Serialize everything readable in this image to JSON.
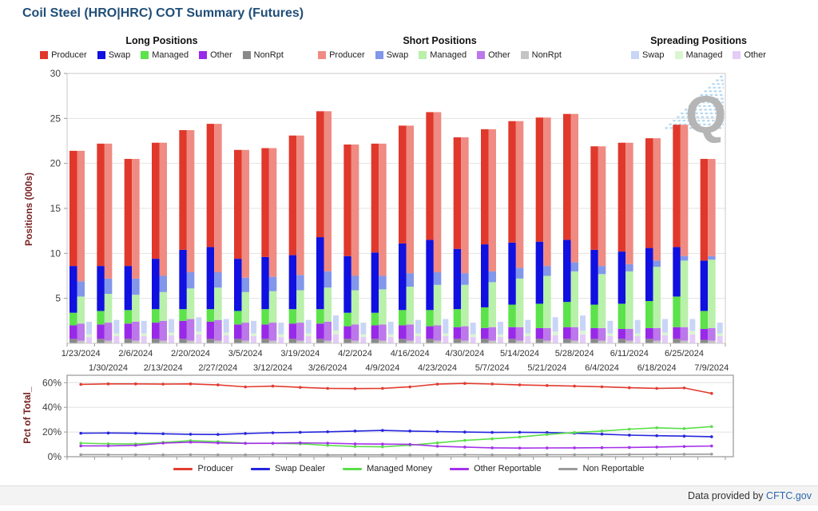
{
  "title": "Coil Steel (HRO|HRC) COT Summary (Futures)",
  "legend_groups": [
    {
      "title": "Long Positions",
      "items": [
        {
          "label": "Producer",
          "color": "#e0382c"
        },
        {
          "label": "Swap",
          "color": "#1010e0"
        },
        {
          "label": "Managed",
          "color": "#5ce24a"
        },
        {
          "label": "Other",
          "color": "#9929e8"
        },
        {
          "label": "NonRpt",
          "color": "#8a8a8a"
        }
      ]
    },
    {
      "title": "Short Positions",
      "items": [
        {
          "label": "Producer",
          "color": "#ef8b82"
        },
        {
          "label": "Swap",
          "color": "#8296ea"
        },
        {
          "label": "Managed",
          "color": "#b9f0aa"
        },
        {
          "label": "Other",
          "color": "#bc77ea"
        },
        {
          "label": "NonRpt",
          "color": "#c4c4c4"
        }
      ]
    },
    {
      "title": "Spreading Positions",
      "items": [
        {
          "label": "Swap",
          "color": "#c9d5f6"
        },
        {
          "label": "Managed",
          "color": "#d9f6d0"
        },
        {
          "label": "Other",
          "color": "#e4cbf8"
        }
      ]
    }
  ],
  "chart_data": [
    {
      "type": "bar",
      "title": "COT positions by trader category, stacked long/short/spreading bars per report date",
      "ylabel": "Positions (000s)",
      "ylim": [
        0,
        30
      ],
      "yticks": [
        5,
        10,
        15,
        20,
        25,
        30
      ],
      "grid": "horizontal",
      "categories": [
        "1/23/2024",
        "1/30/2024",
        "2/6/2024",
        "2/13/2024",
        "2/20/2024",
        "2/27/2024",
        "3/5/2024",
        "3/12/2024",
        "3/19/2024",
        "3/26/2024",
        "4/2/2024",
        "4/9/2024",
        "4/16/2024",
        "4/23/2024",
        "4/30/2024",
        "5/7/2024",
        "5/14/2024",
        "5/21/2024",
        "5/28/2024",
        "6/4/2024",
        "6/11/2024",
        "6/18/2024",
        "6/25/2024",
        "7/9/2024"
      ],
      "groups": [
        {
          "name": "long",
          "series": [
            {
              "name": "NonRpt",
              "color": "#8a8a8a",
              "values": [
                0.5,
                0.5,
                0.5,
                0.5,
                0.5,
                0.5,
                0.5,
                0.5,
                0.5,
                0.5,
                0.5,
                0.5,
                0.5,
                0.5,
                0.5,
                0.5,
                0.5,
                0.5,
                0.5,
                0.5,
                0.5,
                0.5,
                0.5,
                0.4
              ]
            },
            {
              "name": "Other",
              "color": "#9929e8",
              "values": [
                1.5,
                1.6,
                1.7,
                1.8,
                2.0,
                1.9,
                1.6,
                1.6,
                1.7,
                1.7,
                1.4,
                1.5,
                1.5,
                1.4,
                1.3,
                1.2,
                1.3,
                1.2,
                1.3,
                1.2,
                1.1,
                1.2,
                1.3,
                1.2
              ]
            },
            {
              "name": "Managed",
              "color": "#5ce24a",
              "values": [
                1.4,
                1.5,
                1.5,
                1.5,
                1.3,
                1.4,
                1.5,
                1.7,
                1.6,
                1.6,
                1.5,
                1.4,
                1.7,
                1.8,
                2.0,
                2.3,
                2.5,
                2.7,
                2.8,
                2.6,
                2.8,
                3.0,
                3.4,
                2.0
              ]
            },
            {
              "name": "Swap",
              "color": "#1010e0",
              "values": [
                5.2,
                5.0,
                4.9,
                5.6,
                6.6,
                6.9,
                5.8,
                5.8,
                6.0,
                8.0,
                6.3,
                6.7,
                7.4,
                7.8,
                6.7,
                7.0,
                6.9,
                6.9,
                6.9,
                6.1,
                5.8,
                5.9,
                5.5,
                5.6
              ]
            },
            {
              "name": "Producer",
              "color": "#e0382c",
              "values": [
                12.8,
                13.6,
                11.9,
                12.9,
                13.3,
                13.7,
                12.1,
                12.1,
                13.3,
                14.0,
                12.4,
                12.1,
                13.1,
                14.2,
                12.4,
                12.8,
                13.5,
                13.8,
                14.0,
                11.5,
                12.1,
                12.2,
                13.6,
                11.3
              ]
            }
          ]
        },
        {
          "name": "short",
          "series": [
            {
              "name": "NonRpt",
              "color": "#c4c4c4",
              "values": [
                0.3,
                0.3,
                0.3,
                0.3,
                0.3,
                0.3,
                0.3,
                0.3,
                0.3,
                0.3,
                0.3,
                0.3,
                0.3,
                0.3,
                0.3,
                0.3,
                0.3,
                0.3,
                0.3,
                0.3,
                0.3,
                0.3,
                0.3,
                0.3
              ]
            },
            {
              "name": "Other",
              "color": "#bc77ea",
              "values": [
                1.9,
                2.0,
                2.1,
                2.2,
                2.4,
                2.3,
                2.0,
                2.0,
                2.0,
                2.1,
                1.8,
                1.8,
                1.8,
                1.7,
                1.6,
                1.5,
                1.5,
                1.4,
                1.5,
                1.4,
                1.3,
                1.4,
                1.5,
                1.4
              ]
            },
            {
              "name": "Managed",
              "color": "#b9f0aa",
              "values": [
                3.0,
                3.2,
                3.0,
                3.2,
                3.4,
                3.6,
                3.4,
                3.5,
                3.6,
                3.8,
                3.8,
                3.9,
                4.2,
                4.5,
                4.6,
                5.0,
                5.4,
                5.8,
                6.2,
                6.0,
                6.4,
                6.8,
                7.4,
                7.6
              ]
            },
            {
              "name": "Swap",
              "color": "#8296ea",
              "values": [
                1.7,
                1.7,
                1.8,
                1.8,
                1.8,
                1.7,
                1.6,
                1.6,
                1.7,
                1.8,
                1.6,
                1.5,
                1.5,
                1.4,
                1.3,
                1.2,
                1.2,
                1.1,
                1.0,
                0.9,
                0.8,
                0.7,
                0.5,
                0.4
              ]
            },
            {
              "name": "Producer",
              "color": "#ef8b82",
              "values": [
                14.5,
                15.0,
                13.3,
                14.8,
                15.8,
                16.5,
                14.2,
                14.3,
                15.5,
                17.8,
                14.6,
                14.7,
                16.4,
                17.8,
                15.1,
                15.8,
                16.3,
                16.5,
                16.5,
                13.3,
                13.5,
                13.6,
                14.6,
                10.8
              ]
            }
          ]
        },
        {
          "name": "spreading",
          "series": [
            {
              "name": "Other",
              "color": "#e4cbf8",
              "values": [
                0.7,
                0.8,
                0.8,
                0.9,
                1.0,
                0.9,
                0.8,
                0.7,
                0.8,
                1.0,
                0.7,
                0.7,
                0.8,
                0.8,
                0.7,
                0.7,
                0.8,
                0.9,
                1.0,
                0.8,
                0.8,
                0.9,
                1.0,
                0.8
              ]
            },
            {
              "name": "Managed",
              "color": "#d9f6d0",
              "values": [
                0.3,
                0.3,
                0.3,
                0.3,
                0.3,
                0.3,
                0.3,
                0.3,
                0.3,
                0.4,
                0.3,
                0.3,
                0.3,
                0.3,
                0.3,
                0.3,
                0.3,
                0.4,
                0.4,
                0.3,
                0.3,
                0.3,
                0.4,
                0.3
              ]
            },
            {
              "name": "Swap",
              "color": "#c9d5f6",
              "values": [
                1.4,
                1.5,
                1.4,
                1.5,
                1.6,
                1.5,
                1.4,
                1.3,
                1.5,
                1.7,
                1.3,
                1.4,
                1.5,
                1.6,
                1.3,
                1.4,
                1.5,
                1.6,
                1.7,
                1.4,
                1.5,
                1.5,
                1.3,
                1.2
              ]
            }
          ]
        }
      ],
      "watermark": "Q"
    },
    {
      "type": "line",
      "title": "Percent of total open interest by trader category",
      "ylabel": "Pct of Total_",
      "ylim": [
        0,
        66
      ],
      "yticks": [
        0,
        20,
        40,
        60
      ],
      "ytick_suffix": "%",
      "grid": "horizontal",
      "legend_position": "bottom",
      "categories": [
        "1/23/2024",
        "1/30/2024",
        "2/6/2024",
        "2/13/2024",
        "2/20/2024",
        "2/27/2024",
        "3/5/2024",
        "3/12/2024",
        "3/19/2024",
        "3/26/2024",
        "4/2/2024",
        "4/9/2024",
        "4/16/2024",
        "4/23/2024",
        "4/30/2024",
        "5/7/2024",
        "5/14/2024",
        "5/21/2024",
        "5/28/2024",
        "6/4/2024",
        "6/11/2024",
        "6/18/2024",
        "6/25/2024",
        "7/9/2024"
      ],
      "series": [
        {
          "name": "Producer",
          "color": "#e23b30",
          "values": [
            58.6,
            59.0,
            59.0,
            58.8,
            59.0,
            58.2,
            56.6,
            57.2,
            56.2,
            55.4,
            55.2,
            55.4,
            56.6,
            58.8,
            59.4,
            58.9,
            58.2,
            57.7,
            57.2,
            56.7,
            55.9,
            55.4,
            55.7,
            51.3
          ]
        },
        {
          "name": "Swap Dealer",
          "color": "#2525de",
          "values": [
            19.0,
            19.2,
            19.0,
            18.6,
            18.2,
            18.0,
            18.8,
            19.4,
            19.8,
            20.2,
            20.8,
            21.3,
            20.8,
            20.4,
            20.0,
            19.7,
            19.8,
            19.6,
            19.0,
            18.3,
            17.5,
            17.0,
            16.7,
            16.2
          ]
        },
        {
          "name": "Managed Money",
          "color": "#5ade49",
          "values": [
            11.0,
            10.5,
            10.3,
            11.6,
            13.0,
            12.3,
            11.0,
            10.8,
            10.5,
            9.2,
            8.3,
            8.0,
            9.3,
            11.2,
            13.2,
            14.5,
            16.0,
            18.0,
            19.6,
            20.8,
            22.3,
            23.4,
            22.8,
            24.4
          ]
        },
        {
          "name": "Other Reportable",
          "color": "#a431ea",
          "values": [
            8.8,
            8.8,
            9.2,
            11.0,
            11.8,
            11.2,
            10.8,
            10.9,
            11.2,
            11.0,
            10.4,
            10.2,
            10.0,
            8.5,
            7.8,
            7.2,
            7.0,
            7.1,
            7.2,
            7.3,
            7.5,
            7.8,
            8.3,
            8.7
          ]
        },
        {
          "name": "Non Reportable",
          "color": "#9b9b9b",
          "values": [
            1.7,
            1.6,
            1.6,
            1.5,
            1.6,
            1.5,
            1.5,
            1.6,
            1.5,
            1.4,
            1.5,
            1.5,
            1.4,
            1.5,
            1.6,
            1.5,
            1.5,
            1.6,
            1.6,
            1.7,
            1.8,
            1.9,
            2.0,
            2.1
          ]
        }
      ]
    }
  ],
  "footer": {
    "prefix": "Data provided by",
    "link_label": "CFTC.gov"
  }
}
